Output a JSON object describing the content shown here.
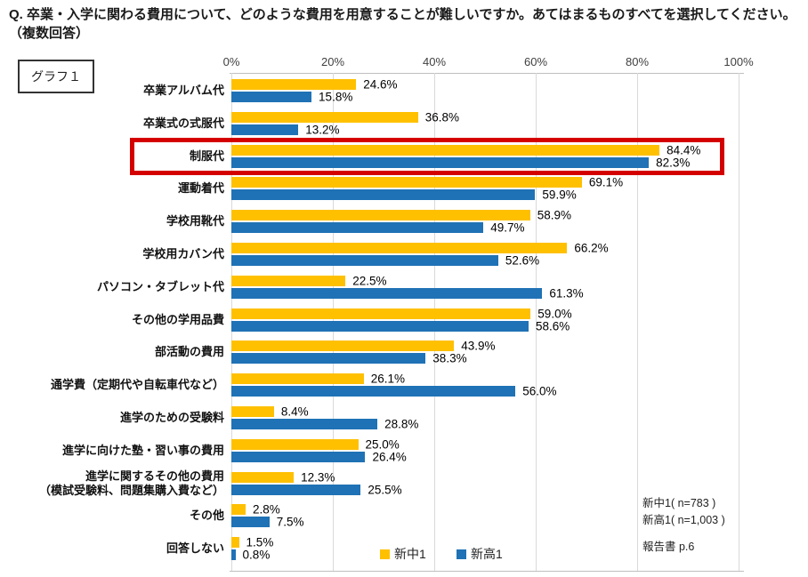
{
  "title": "Q. 卒業・入学に関わる費用について、どのような費用を用意することが難しいですか。あてはまるものすべてを選択してください。（複数回答）",
  "graph_label": "グラフ１",
  "legend": [
    {
      "label": "新中1",
      "color": "#FFC000"
    },
    {
      "label": "新高1",
      "color": "#1F72B5"
    }
  ],
  "notes": [
    "新中1( n=783 )",
    "新高1( n=1,003 )"
  ],
  "source": "報告書 p.6",
  "chart_data": {
    "type": "bar",
    "orientation": "horizontal",
    "title": "",
    "xlabel": "",
    "ylabel": "",
    "xlim": [
      0,
      100
    ],
    "x_ticks": [
      "0%",
      "20%",
      "40%",
      "60%",
      "80%",
      "100%"
    ],
    "grid": true,
    "legend_position": "bottom",
    "categories": [
      "卒業アルバム代",
      "卒業式の式服代",
      "制服代",
      "運動着代",
      "学校用靴代",
      "学校用カバン代",
      "パソコン・タブレット代",
      "その他の学用品費",
      "部活動の費用",
      "通学費（定期代や自転車代など）",
      "進学のための受験料",
      "進学に向けた塾・習い事の費用",
      "進学に関するその他の費用\n（模試受験料、問題集購入費など）",
      "その他",
      "回答しない"
    ],
    "series": [
      {
        "name": "新中1",
        "color": "#FFC000",
        "values": [
          24.6,
          36.8,
          84.4,
          69.1,
          58.9,
          66.2,
          22.5,
          59.0,
          43.9,
          26.1,
          8.4,
          25.0,
          12.3,
          2.8,
          1.5
        ]
      },
      {
        "name": "新高1",
        "color": "#1F72B5",
        "values": [
          15.8,
          13.2,
          82.3,
          59.9,
          49.7,
          52.6,
          61.3,
          58.6,
          38.3,
          56.0,
          28.8,
          26.4,
          25.5,
          7.5,
          0.8
        ]
      }
    ],
    "highlighted_category": "制服代",
    "highlighted_index": 2,
    "highlight_color": "#D40000",
    "colors": {
      "gridline": "#D9D9D9",
      "axis_line": "#BFBFBF",
      "tick_label": "#404040",
      "value_label": "#000000"
    }
  }
}
